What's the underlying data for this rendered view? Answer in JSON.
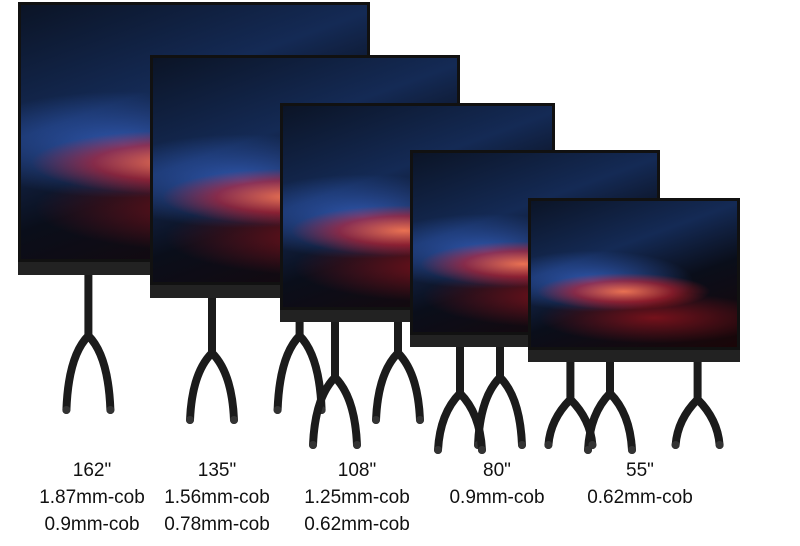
{
  "products": [
    {
      "size": "162\"",
      "pitches": [
        "1.87mm-cob",
        "0.9mm-cob"
      ]
    },
    {
      "size": "135\"",
      "pitches": [
        "1.56mm-cob",
        "0.78mm-cob"
      ]
    },
    {
      "size": "108\"",
      "pitches": [
        "1.25mm-cob",
        "0.62mm-cob"
      ]
    },
    {
      "size": "80\"",
      "pitches": [
        "0.9mm-cob"
      ]
    },
    {
      "size": "55\"",
      "pitches": [
        "0.62mm-cob"
      ]
    }
  ]
}
